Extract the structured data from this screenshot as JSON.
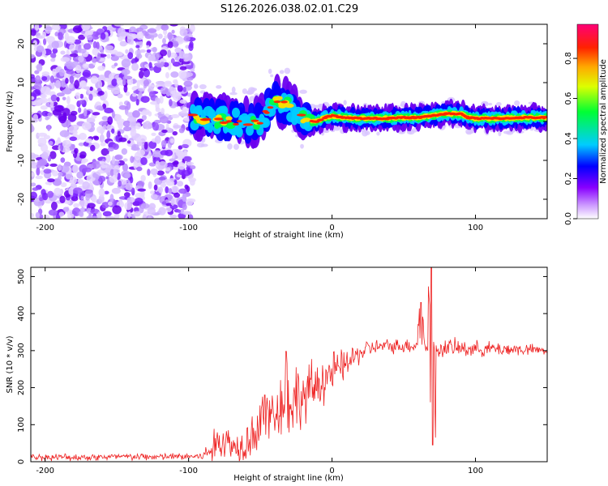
{
  "figure_title": "S126.2026.038.02.01.C29",
  "chart_data": [
    {
      "type": "heatmap",
      "title": "S126.2026.038.02.01.C29",
      "xlabel": "Height of straight line (km)",
      "ylabel": "Frequency (Hz)",
      "xlim": [
        -210,
        150
      ],
      "ylim": [
        -25,
        25
      ],
      "xticks": [
        -200,
        -100,
        0,
        100
      ],
      "yticks": [
        -20,
        -10,
        0,
        10,
        20
      ],
      "noise_region_x": [
        -210,
        -97
      ],
      "signal_region_x": [
        -97,
        150
      ],
      "ridge": {
        "x": [
          -97,
          -90,
          -80,
          -70,
          -60,
          -50,
          -45,
          -40,
          -35,
          -30,
          -25,
          -20,
          -15,
          -10,
          -5,
          0,
          10,
          20,
          30,
          40,
          50,
          60,
          70,
          80,
          90,
          95,
          100,
          110,
          120,
          130,
          140,
          150
        ],
        "freq": [
          1.5,
          0.5,
          0.5,
          0,
          -0.5,
          0,
          3,
          6,
          5,
          4,
          2,
          1,
          0,
          0,
          1,
          1.5,
          1,
          0.8,
          0.8,
          0.8,
          1,
          1,
          1.5,
          2,
          2,
          1,
          0.8,
          0.8,
          0.8,
          1,
          1,
          1
        ]
      },
      "colorbar": {
        "label": "Normalized spectral amplitude",
        "ticks": [
          0.0,
          0.2,
          0.4,
          0.6,
          0.8
        ],
        "tick_labels": [
          "0.0",
          "0.2",
          "0.4",
          "0.6",
          "0.8"
        ],
        "range": [
          0,
          0.97
        ],
        "colors": [
          "#ffffff",
          "#cc99ff",
          "#7a00ff",
          "#0000ff",
          "#00ccff",
          "#00ff66",
          "#ffff00",
          "#ff6600",
          "#ff0033",
          "#ff0088"
        ]
      }
    },
    {
      "type": "line",
      "title": "",
      "xlabel": "Height of straight line (km)",
      "ylabel": "SNR (10 * v/v)",
      "xlim": [
        -210,
        150
      ],
      "ylim": [
        0,
        525
      ],
      "xticks": [
        -200,
        -100,
        0,
        100
      ],
      "yticks": [
        0,
        100,
        200,
        300,
        400,
        500
      ],
      "color": "#ee2222",
      "series": [
        {
          "name": "SNR",
          "x": [
            -210,
            -180,
            -150,
            -120,
            -100,
            -90,
            -85,
            -80,
            -75,
            -70,
            -65,
            -60,
            -55,
            -50,
            -45,
            -40,
            -35,
            -30,
            -25,
            -20,
            -15,
            -10,
            -5,
            0,
            5,
            10,
            15,
            20,
            25,
            30,
            40,
            50,
            60,
            65,
            70,
            75,
            80,
            90,
            100,
            110,
            120,
            130,
            140,
            150
          ],
          "y": [
            12,
            12,
            13,
            13,
            14,
            15,
            30,
            50,
            60,
            45,
            40,
            60,
            80,
            90,
            110,
            140,
            160,
            150,
            180,
            170,
            190,
            210,
            230,
            240,
            250,
            265,
            280,
            295,
            305,
            310,
            312,
            313,
            315,
            320,
            300,
            305,
            308,
            306,
            305,
            305,
            304,
            303,
            302,
            300
          ],
          "jitter": [
            10,
            10,
            10,
            10,
            10,
            12,
            40,
            50,
            55,
            45,
            45,
            55,
            70,
            75,
            80,
            90,
            90,
            90,
            90,
            85,
            80,
            75,
            70,
            60,
            50,
            40,
            35,
            30,
            25,
            20,
            20,
            20,
            22,
            30,
            35,
            25,
            25,
            25,
            22,
            20,
            20,
            18,
            15,
            12
          ]
        }
      ],
      "spikes": [
        {
          "x": -32,
          "y": 298
        },
        {
          "x": -47,
          "y": 180
        },
        {
          "x": 62,
          "y": 430
        },
        {
          "x": 69,
          "y": 525
        },
        {
          "x": 70,
          "y": 45
        }
      ]
    }
  ]
}
